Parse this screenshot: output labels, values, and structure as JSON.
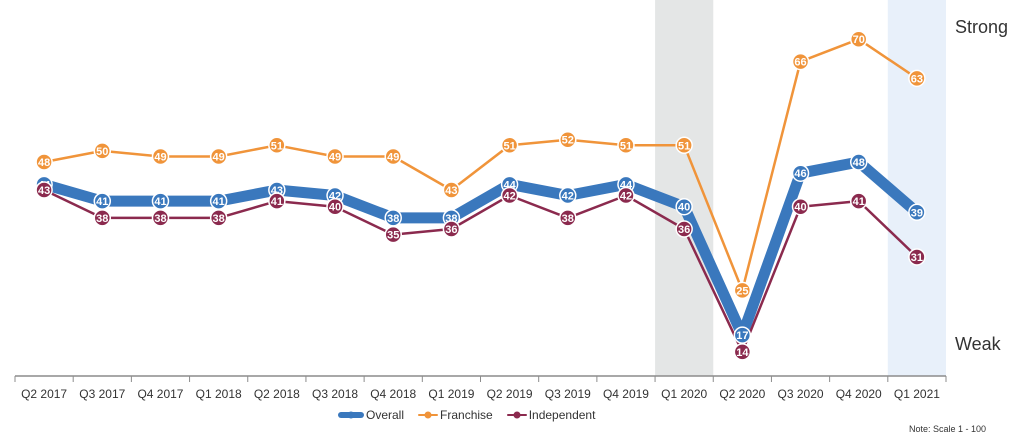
{
  "chart_data": {
    "type": "line",
    "categories": [
      "Q2 2017",
      "Q3 2017",
      "Q4 2017",
      "Q1 2018",
      "Q2 2018",
      "Q3 2018",
      "Q4 2018",
      "Q1 2019",
      "Q2 2019",
      "Q3 2019",
      "Q4 2019",
      "Q1 2020",
      "Q2 2020",
      "Q3 2020",
      "Q4 2020",
      "Q1 2021"
    ],
    "series": [
      {
        "name": "Overall",
        "values": [
          44,
          41,
          41,
          41,
          43,
          42,
          38,
          38,
          44,
          42,
          44,
          40,
          17,
          46,
          48,
          39
        ],
        "color": "#3a78bd"
      },
      {
        "name": "Franchise",
        "values": [
          48,
          50,
          49,
          49,
          51,
          49,
          49,
          43,
          51,
          52,
          51,
          51,
          25,
          66,
          70,
          63
        ],
        "color": "#f0943a"
      },
      {
        "name": "Independent",
        "values": [
          43,
          38,
          38,
          38,
          41,
          40,
          35,
          36,
          42,
          38,
          42,
          36,
          14,
          40,
          41,
          31
        ],
        "color": "#8b2a4e"
      }
    ],
    "shaded_categories": [
      {
        "category": "Q1 2020",
        "color": "#e4e6e6"
      },
      {
        "category": "Q1 2021",
        "color": "#e8f0fa"
      }
    ],
    "ylim": [
      12,
      73
    ],
    "grid": false,
    "legend": "bottom-center"
  },
  "labels": {
    "strong": "Strong",
    "weak": "Weak",
    "note": "Note: Scale 1 - 100"
  }
}
